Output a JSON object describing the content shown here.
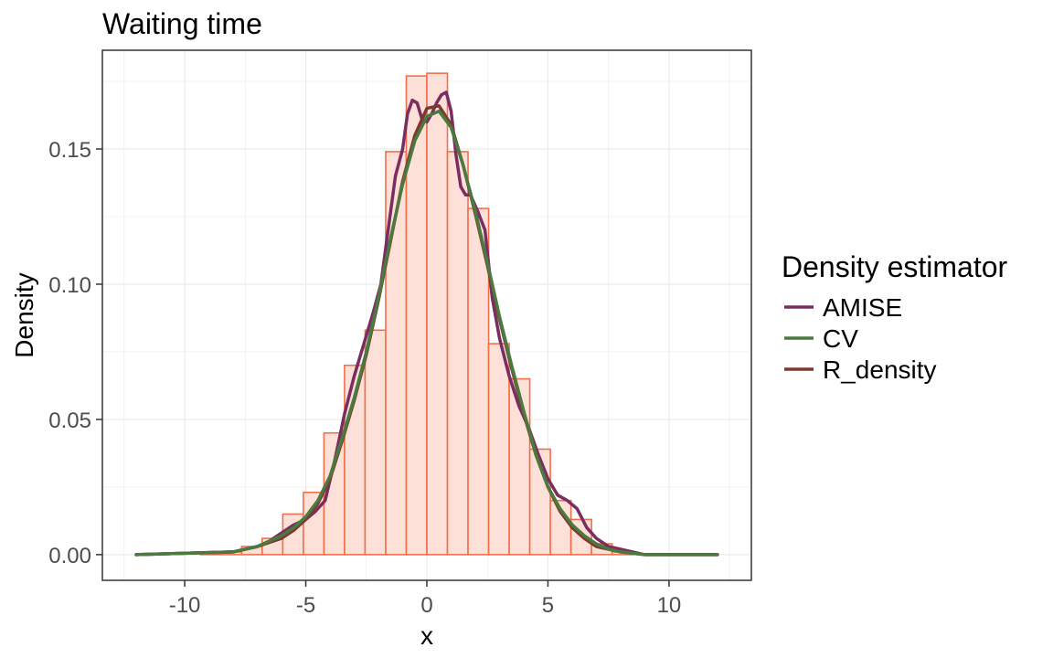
{
  "chart_data": {
    "type": "histogram-density",
    "title": "Waiting time",
    "xlabel": "x",
    "ylabel": "Density",
    "xlim": [
      -13.4,
      13.4
    ],
    "ylim": [
      -0.0095,
      0.1865
    ],
    "x_ticks": [
      -10,
      -5,
      0,
      5,
      10
    ],
    "x_tick_labels": [
      "-10",
      "-5",
      "0",
      "5",
      "10"
    ],
    "y_ticks": [
      0.0,
      0.05,
      0.1,
      0.15
    ],
    "y_tick_labels": [
      "0.00",
      "0.05",
      "0.10",
      "0.15"
    ],
    "grid": true,
    "histogram": {
      "bin_width": 0.85,
      "bin_centers": [
        -12.325,
        -11.475,
        -10.625,
        -9.775,
        -8.925,
        -8.075,
        -7.225,
        -6.375,
        -5.525,
        -4.675,
        -3.825,
        -2.975,
        -2.125,
        -1.275,
        -0.425,
        0.425,
        1.275,
        2.125,
        2.975,
        3.825,
        4.675,
        5.525,
        6.375,
        7.225,
        8.075,
        8.925,
        9.775,
        10.625,
        11.475
      ],
      "density": [
        0.0,
        0.0,
        0.0,
        0.0,
        0.001,
        0.001,
        0.003,
        0.006,
        0.015,
        0.023,
        0.045,
        0.07,
        0.083,
        0.149,
        0.177,
        0.178,
        0.149,
        0.128,
        0.078,
        0.065,
        0.039,
        0.02,
        0.013,
        0.004,
        0.001,
        0.0,
        0.0,
        0.0,
        0.0
      ],
      "fill": "#fde1d8",
      "stroke": "#f26f4c"
    },
    "series": [
      {
        "name": "AMISE",
        "color": "#7b2d62",
        "x": [
          -12,
          -8,
          -7,
          -6.5,
          -6,
          -5.5,
          -5,
          -4.6,
          -4.2,
          -3.8,
          -3.4,
          -3,
          -2.6,
          -2.2,
          -1.9,
          -1.6,
          -1.3,
          -1.0,
          -0.8,
          -0.6,
          -0.4,
          -0.2,
          0,
          0.2,
          0.4,
          0.6,
          0.8,
          1.0,
          1.2,
          1.4,
          1.6,
          1.8,
          2.1,
          2.4,
          2.7,
          3.0,
          3.4,
          3.8,
          4.2,
          4.6,
          5.0,
          5.4,
          5.8,
          6.2,
          6.6,
          7.0,
          7.5,
          8.0,
          9,
          10,
          12
        ],
        "y": [
          0.0,
          0.001,
          0.003,
          0.005,
          0.008,
          0.011,
          0.013,
          0.016,
          0.02,
          0.035,
          0.052,
          0.066,
          0.078,
          0.09,
          0.1,
          0.12,
          0.14,
          0.15,
          0.163,
          0.168,
          0.167,
          0.161,
          0.16,
          0.163,
          0.167,
          0.17,
          0.171,
          0.164,
          0.148,
          0.136,
          0.133,
          0.133,
          0.127,
          0.12,
          0.095,
          0.08,
          0.066,
          0.055,
          0.047,
          0.037,
          0.028,
          0.022,
          0.02,
          0.017,
          0.01,
          0.006,
          0.003,
          0.002,
          0.0,
          0.0,
          0.0
        ]
      },
      {
        "name": "CV",
        "color": "#4a7a3e",
        "x": [
          -12,
          -8,
          -7,
          -6,
          -5.5,
          -5,
          -4.5,
          -4,
          -3.5,
          -3,
          -2.5,
          -2,
          -1.5,
          -1,
          -0.5,
          0,
          0.5,
          1,
          1.5,
          2,
          2.5,
          3,
          3.5,
          4,
          4.5,
          5,
          5.5,
          6,
          6.5,
          7,
          7.5,
          8,
          9,
          10,
          12
        ],
        "y": [
          0.0,
          0.001,
          0.003,
          0.007,
          0.01,
          0.014,
          0.02,
          0.029,
          0.043,
          0.058,
          0.075,
          0.095,
          0.117,
          0.137,
          0.153,
          0.162,
          0.164,
          0.158,
          0.144,
          0.127,
          0.108,
          0.088,
          0.07,
          0.053,
          0.037,
          0.025,
          0.017,
          0.011,
          0.007,
          0.004,
          0.002,
          0.001,
          0.0,
          0.0,
          0.0
        ]
      },
      {
        "name": "R_density",
        "color": "#7b3a2e",
        "x": [
          -12,
          -8,
          -7,
          -6,
          -5.5,
          -5,
          -4.5,
          -4,
          -3.5,
          -3,
          -2.5,
          -2,
          -1.5,
          -1,
          -0.5,
          0,
          0.5,
          1,
          1.5,
          2,
          2.5,
          3,
          3.5,
          4,
          4.5,
          5,
          5.5,
          6,
          6.5,
          7,
          7.5,
          8,
          9,
          10,
          12
        ],
        "y": [
          0.0,
          0.001,
          0.003,
          0.006,
          0.009,
          0.013,
          0.019,
          0.028,
          0.042,
          0.057,
          0.074,
          0.094,
          0.116,
          0.138,
          0.155,
          0.165,
          0.166,
          0.159,
          0.144,
          0.126,
          0.107,
          0.087,
          0.069,
          0.052,
          0.037,
          0.025,
          0.016,
          0.01,
          0.006,
          0.003,
          0.002,
          0.001,
          0.0,
          0.0,
          0.0
        ]
      }
    ],
    "legend": {
      "title": "Density estimator",
      "placement": "right",
      "entries": [
        "AMISE",
        "CV",
        "R_density"
      ]
    }
  }
}
